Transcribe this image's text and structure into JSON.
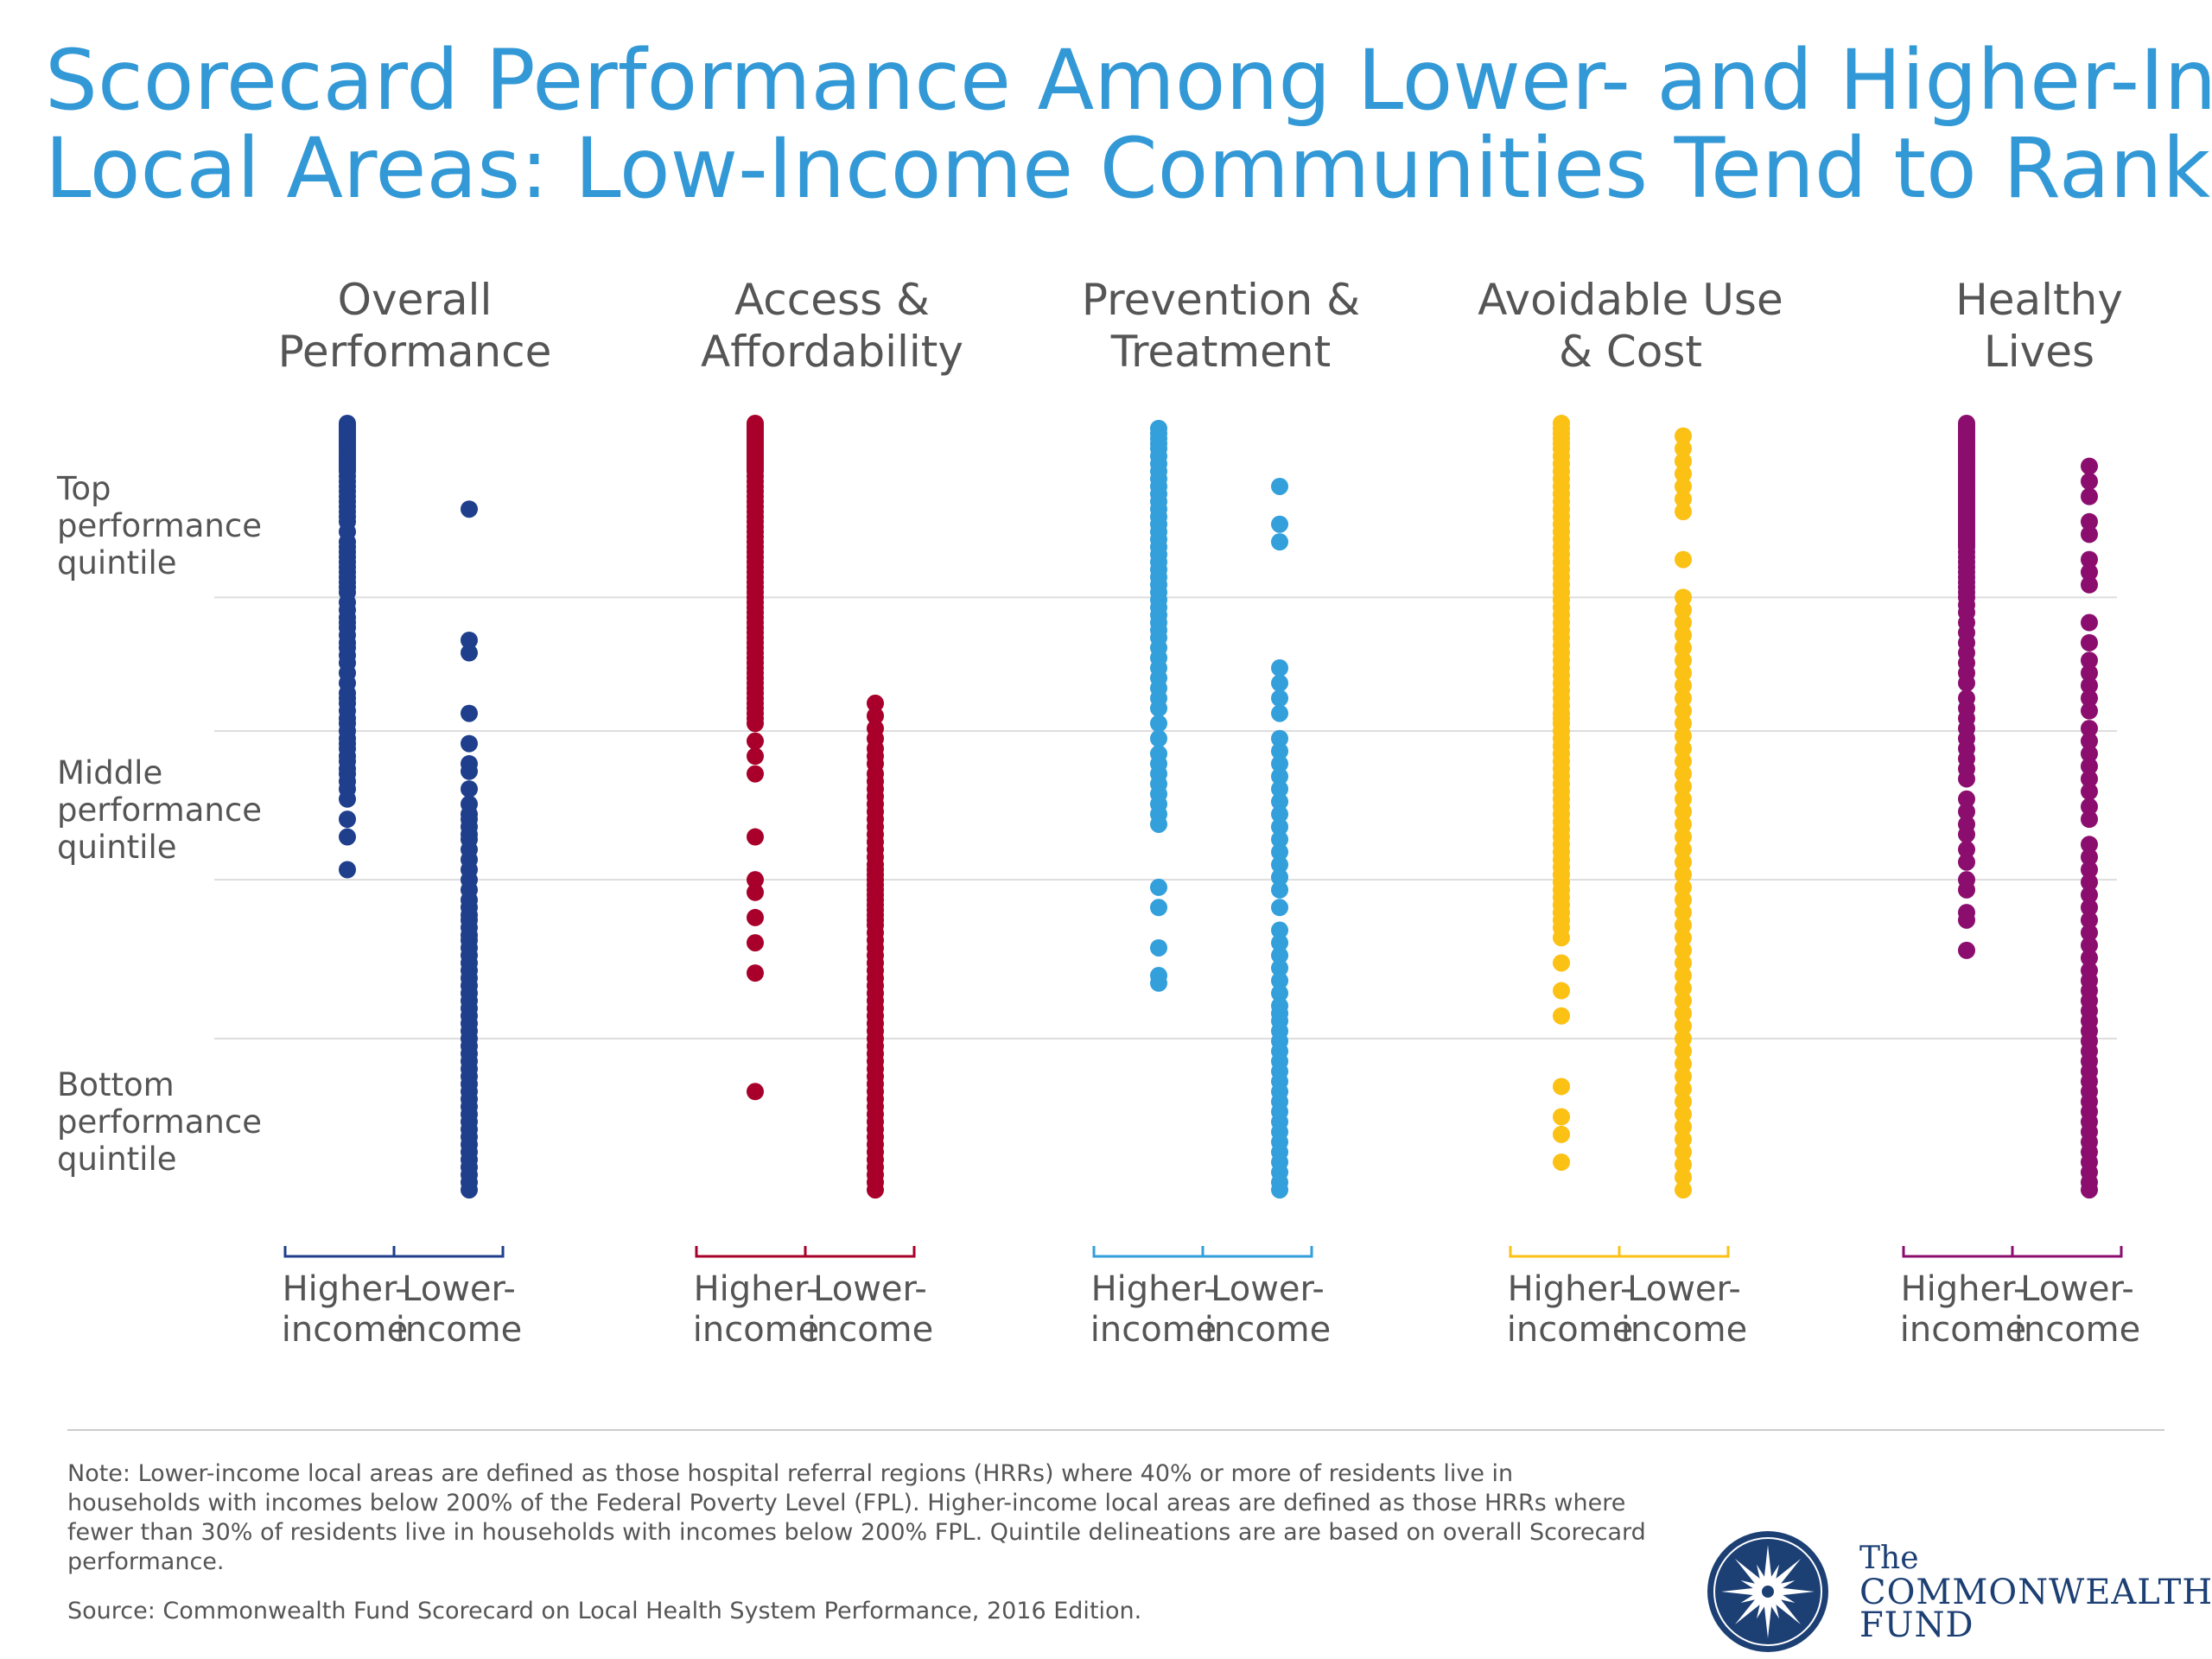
{
  "title": {
    "line1": "Scorecard Performance Among Lower- and Higher-Income",
    "line2": "Local Areas: Low-Income Communities Tend to Rank Lower"
  },
  "row_labels": {
    "top": [
      "Top",
      "performance",
      "quintile"
    ],
    "middle": [
      "Middle",
      "performance",
      "quintile"
    ],
    "bottom": [
      "Bottom",
      "performance",
      "quintile"
    ]
  },
  "category_labels": {
    "higher": [
      "Higher-",
      "income"
    ],
    "lower": [
      "Lower-",
      "income"
    ]
  },
  "note": [
    "Note: Lower-income local areas are defined as those hospital referral regions (HRRs) where 40% or more of residents live in",
    "households with incomes below 200% of the Federal Poverty Level (FPL). Higher-income local areas are defined as those HRRs where",
    "fewer than 30% of residents live in households with incomes below 200% FPL. Quintile delineations are are based on overall Scorecard",
    "performance."
  ],
  "source": "Source: Commonwealth Fund Scorecard on Local Health System Performance, 2016 Edition.",
  "logo": {
    "the": "The",
    "name1": "COMMONWEALTH",
    "name2": "FUND",
    "icon": "compass-star-seal-icon",
    "color": "#1c3f74"
  },
  "chart_data": {
    "type": "scatter",
    "y_axis": {
      "min": 1,
      "max": 306,
      "direction": "rank, 1 = best at top",
      "grid": true
    },
    "quintile_breaks": [
      70,
      123,
      182,
      245
    ],
    "groups": [
      {
        "title": [
          "Overall",
          "Performance"
        ],
        "color": "#1f3f8c",
        "higher_ranks": [
          1,
          2,
          3,
          4,
          5,
          6,
          7,
          8,
          9,
          10,
          11,
          12,
          13,
          14,
          15,
          16,
          17,
          18,
          19,
          20,
          22,
          24,
          26,
          28,
          30,
          32,
          34,
          36,
          38,
          40,
          44,
          48,
          50,
          52,
          54,
          56,
          58,
          60,
          62,
          64,
          66,
          68,
          72,
          75,
          78,
          80,
          82,
          85,
          88,
          90,
          93,
          96,
          100,
          104,
          108,
          110,
          112,
          115,
          118,
          120,
          123,
          126,
          128,
          130,
          133,
          135,
          138,
          140,
          143,
          146,
          150,
          158,
          165,
          178
        ],
        "lower_ranks": [
          35,
          87,
          92,
          116,
          128,
          136,
          139,
          146,
          152,
          156,
          158,
          161,
          164,
          166,
          170,
          174,
          178,
          182,
          186,
          190,
          193,
          196,
          198,
          201,
          204,
          206,
          209,
          212,
          215,
          218,
          221,
          224,
          227,
          230,
          233,
          236,
          239,
          242,
          245,
          248,
          251,
          254,
          257,
          260,
          263,
          266,
          269,
          272,
          275,
          278,
          281,
          284,
          287,
          290,
          293,
          296,
          299,
          302,
          305
        ]
      },
      {
        "title": [
          "Access &",
          "Affordability"
        ],
        "color": "#a8002a",
        "higher_ranks": [
          1,
          2,
          3,
          4,
          5,
          6,
          7,
          8,
          9,
          10,
          11,
          12,
          13,
          14,
          15,
          16,
          17,
          18,
          19,
          20,
          22,
          24,
          26,
          28,
          30,
          32,
          34,
          36,
          38,
          40,
          42,
          44,
          46,
          48,
          50,
          52,
          54,
          56,
          58,
          60,
          62,
          64,
          66,
          68,
          70,
          72,
          74,
          76,
          78,
          80,
          82,
          84,
          86,
          88,
          90,
          92,
          94,
          96,
          98,
          100,
          102,
          104,
          106,
          108,
          110,
          112,
          114,
          116,
          118,
          120,
          127,
          133,
          140,
          165,
          182,
          187,
          197,
          207,
          219,
          266
        ],
        "lower_ranks": [
          112,
          117,
          122,
          126,
          130,
          133,
          136,
          140,
          143,
          146,
          149,
          152,
          155,
          158,
          161,
          164,
          167,
          170,
          173,
          176,
          178,
          180,
          182,
          184,
          186,
          188,
          190,
          192,
          194,
          196,
          198,
          200,
          203,
          206,
          209,
          212,
          215,
          218,
          221,
          224,
          227,
          230,
          233,
          236,
          239,
          242,
          245,
          248,
          251,
          254,
          257,
          260,
          263,
          266,
          269,
          272,
          275,
          278,
          281,
          284,
          287,
          290,
          293,
          296,
          299,
          302,
          305
        ]
      },
      {
        "title": [
          "Prevention &",
          "Treatment"
        ],
        "color": "#339fdb",
        "higher_ranks": [
          3,
          5,
          7,
          9,
          11,
          14,
          17,
          20,
          23,
          26,
          29,
          32,
          35,
          38,
          41,
          44,
          47,
          50,
          53,
          56,
          59,
          62,
          65,
          68,
          71,
          74,
          77,
          80,
          83,
          86,
          90,
          94,
          98,
          102,
          106,
          110,
          114,
          120,
          126,
          132,
          136,
          140,
          144,
          148,
          152,
          156,
          160,
          185,
          193,
          209,
          220,
          223
        ],
        "lower_ranks": [
          26,
          41,
          48,
          98,
          104,
          110,
          116,
          126,
          131,
          136,
          141,
          146,
          151,
          156,
          161,
          166,
          171,
          176,
          181,
          186,
          193,
          202,
          207,
          212,
          217,
          222,
          227,
          232,
          235,
          238,
          242,
          246,
          250,
          254,
          258,
          262,
          266,
          270,
          274,
          278,
          282,
          286,
          290,
          294,
          298,
          302,
          305
        ]
      },
      {
        "title": [
          "Avoidable Use",
          "& Cost"
        ],
        "color": "#fbc115",
        "higher_ranks": [
          1,
          3,
          5,
          7,
          9,
          11,
          14,
          17,
          20,
          23,
          26,
          29,
          32,
          35,
          38,
          41,
          44,
          47,
          50,
          53,
          56,
          59,
          62,
          65,
          68,
          71,
          74,
          77,
          80,
          83,
          86,
          89,
          92,
          95,
          98,
          101,
          104,
          107,
          110,
          113,
          116,
          118,
          120,
          123,
          126,
          129,
          132,
          135,
          138,
          141,
          144,
          147,
          150,
          153,
          156,
          159,
          162,
          165,
          168,
          171,
          174,
          177,
          180,
          183,
          186,
          189,
          192,
          195,
          198,
          201,
          205,
          215,
          226,
          236,
          264,
          276,
          283,
          294
        ],
        "lower_ranks": [
          6,
          11,
          16,
          21,
          26,
          31,
          36,
          55,
          70,
          75,
          80,
          85,
          90,
          95,
          100,
          105,
          110,
          115,
          120,
          125,
          130,
          135,
          140,
          145,
          150,
          155,
          160,
          165,
          170,
          175,
          180,
          185,
          190,
          195,
          200,
          205,
          210,
          215,
          220,
          225,
          230,
          235,
          240,
          245,
          250,
          255,
          260,
          265,
          270,
          275,
          280,
          285,
          290,
          295,
          300,
          305
        ]
      },
      {
        "title": [
          "Healthy",
          "Lives"
        ],
        "color": "#8b0e6e",
        "higher_ranks": [
          1,
          2,
          3,
          4,
          5,
          6,
          7,
          8,
          9,
          10,
          11,
          12,
          13,
          14,
          15,
          16,
          17,
          18,
          19,
          20,
          21,
          22,
          23,
          24,
          25,
          26,
          27,
          28,
          29,
          30,
          31,
          32,
          33,
          34,
          35,
          36,
          37,
          38,
          39,
          40,
          41,
          42,
          43,
          44,
          45,
          46,
          47,
          48,
          49,
          50,
          52,
          54,
          56,
          58,
          60,
          62,
          64,
          66,
          68,
          70,
          73,
          76,
          80,
          84,
          88,
          92,
          96,
          100,
          104,
          110,
          114,
          118,
          122,
          126,
          130,
          134,
          138,
          142,
          150,
          155,
          160,
          164,
          170,
          175,
          182,
          186,
          195,
          198,
          210
        ],
        "lower_ranks": [
          18,
          24,
          30,
          40,
          45,
          55,
          60,
          65,
          80,
          88,
          95,
          100,
          105,
          110,
          115,
          122,
          127,
          132,
          137,
          142,
          147,
          153,
          158,
          168,
          173,
          178,
          183,
          188,
          193,
          198,
          203,
          208,
          213,
          218,
          222,
          226,
          230,
          234,
          238,
          242,
          246,
          250,
          254,
          258,
          262,
          266,
          270,
          274,
          278,
          282,
          286,
          290,
          294,
          298,
          302,
          305
        ]
      }
    ]
  }
}
